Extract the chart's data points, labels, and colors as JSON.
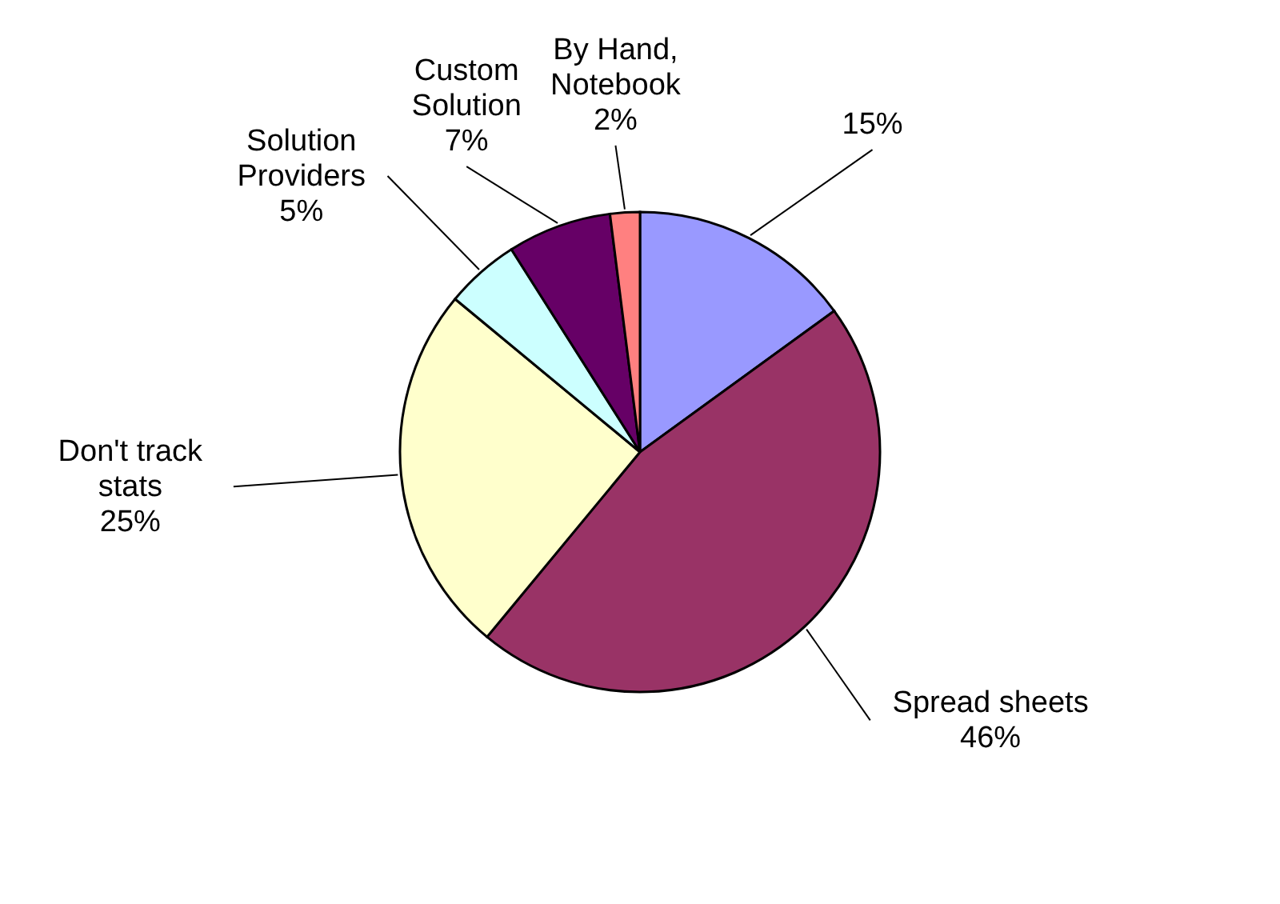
{
  "chart_data": {
    "type": "pie",
    "categories": [
      null,
      "Spread sheets",
      "Don't track stats",
      "Solution Providers",
      "Custom Solution",
      "By Hand, Notebook"
    ],
    "values": [
      15,
      46,
      25,
      5,
      7,
      2
    ],
    "value_labels": [
      "15%",
      "46%",
      "25%",
      "5%",
      "7%",
      "2%"
    ],
    "colors": [
      "#9999ff",
      "#993366",
      "#ffffcc",
      "#ccffff",
      "#660066",
      "#ff8080"
    ]
  }
}
